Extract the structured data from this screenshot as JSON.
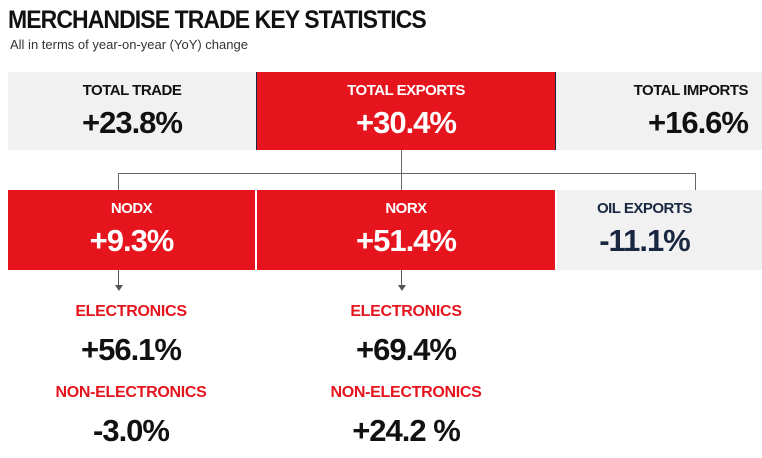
{
  "title": "MERCHANDISE TRADE KEY STATISTICS",
  "subtitle": "All in terms of year-on-year (YoY) change",
  "top": [
    {
      "label": "TOTAL TRADE",
      "value": "+23.8%"
    },
    {
      "label": "TOTAL EXPORTS",
      "value": "+30.4%"
    },
    {
      "label": "TOTAL IMPORTS",
      "value": "+16.6%"
    }
  ],
  "exports": [
    {
      "label": "NODX",
      "value": "+9.3%"
    },
    {
      "label": "NORX",
      "value": "+51.4%"
    },
    {
      "label": "OIL EXPORTS",
      "value": "-11.1%"
    }
  ],
  "nodx_breakdown": [
    {
      "label": "ELECTRONICS",
      "value": "+56.1%"
    },
    {
      "label": "NON-ELECTRONICS",
      "value": "-3.0%"
    }
  ],
  "norx_breakdown": [
    {
      "label": "ELECTRONICS",
      "value": "+69.4%"
    },
    {
      "label": "NON-ELECTRONICS",
      "value": "+24.2 %"
    }
  ],
  "colors": {
    "red": "#e5141d",
    "gray": "#f1f1f1",
    "navy": "#1a2740"
  }
}
